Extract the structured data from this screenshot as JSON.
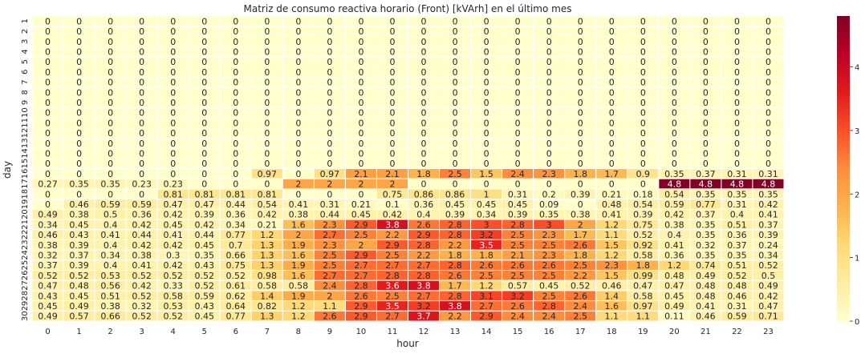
{
  "chart_data": {
    "type": "heatmap",
    "title": "Matriz de consumo reactiva horario (Front) [kVArh] en el último mes",
    "xlabel": "hour",
    "ylabel": "day",
    "x": [
      "0",
      "1",
      "2",
      "3",
      "4",
      "5",
      "6",
      "7",
      "8",
      "9",
      "10",
      "11",
      "12",
      "13",
      "14",
      "15",
      "16",
      "17",
      "18",
      "19",
      "20",
      "21",
      "22",
      "23"
    ],
    "y_ticks": [
      "1",
      "2",
      "3",
      "4",
      "5",
      "6",
      "7",
      "8",
      "9",
      "10",
      "11",
      "12",
      "13",
      "14",
      "15",
      "16",
      "17",
      "18",
      "19",
      "20",
      "21",
      "22",
      "23",
      "24",
      "25",
      "26",
      "27",
      "28",
      "29",
      "30"
    ],
    "values": [
      [
        0,
        0,
        0,
        0,
        0,
        0,
        0,
        0,
        0,
        0,
        0,
        0,
        0,
        0,
        0,
        0,
        0,
        0,
        0,
        0,
        0,
        0,
        0,
        0
      ],
      [
        0,
        0,
        0,
        0,
        0,
        0,
        0,
        0,
        0,
        0,
        0,
        0,
        0,
        0,
        0,
        0,
        0,
        0,
        0,
        0,
        0,
        0,
        0,
        0
      ],
      [
        0,
        0,
        0,
        0,
        0,
        0,
        0,
        0,
        0,
        0,
        0,
        0,
        0,
        0,
        0,
        0,
        0,
        0,
        0,
        0,
        0,
        0,
        0,
        0
      ],
      [
        0,
        0,
        0,
        0,
        0,
        0,
        0,
        0,
        0,
        0,
        0,
        0,
        0,
        0,
        0,
        0,
        0,
        0,
        0,
        0,
        0,
        0,
        0,
        0
      ],
      [
        0,
        0,
        0,
        0,
        0,
        0,
        0,
        0,
        0,
        0,
        0,
        0,
        0,
        0,
        0,
        0,
        0,
        0,
        0,
        0,
        0,
        0,
        0,
        0
      ],
      [
        0,
        0,
        0,
        0,
        0,
        0,
        0,
        0,
        0,
        0,
        0,
        0,
        0,
        0,
        0,
        0,
        0,
        0,
        0,
        0,
        0,
        0,
        0,
        0
      ],
      [
        0,
        0,
        0,
        0,
        0,
        0,
        0,
        0,
        0,
        0,
        0,
        0,
        0,
        0,
        0,
        0,
        0,
        0,
        0,
        0,
        0,
        0,
        0,
        0
      ],
      [
        0,
        0,
        0,
        0,
        0,
        0,
        0,
        0,
        0,
        0,
        0,
        0,
        0,
        0,
        0,
        0,
        0,
        0,
        0,
        0,
        0,
        0,
        0,
        0
      ],
      [
        0,
        0,
        0,
        0,
        0,
        0,
        0,
        0,
        0,
        0,
        0,
        0,
        0,
        0,
        0,
        0,
        0,
        0,
        0,
        0,
        0,
        0,
        0,
        0
      ],
      [
        0,
        0,
        0,
        0,
        0,
        0,
        0,
        0,
        0,
        0,
        0,
        0,
        0,
        0,
        0,
        0,
        0,
        0,
        0,
        0,
        0,
        0,
        0,
        0
      ],
      [
        0,
        0,
        0,
        0,
        0,
        0,
        0,
        0,
        0,
        0,
        0,
        0,
        0,
        0,
        0,
        0,
        0,
        0,
        0,
        0,
        0,
        0,
        0,
        0
      ],
      [
        0,
        0,
        0,
        0,
        0,
        0,
        0,
        0,
        0,
        0,
        0,
        0,
        0,
        0,
        0,
        0,
        0,
        0,
        0,
        0,
        0,
        0,
        0,
        0
      ],
      [
        0,
        0,
        0,
        0,
        0,
        0,
        0,
        0,
        0,
        0,
        0,
        0,
        0,
        0,
        0,
        0,
        0,
        0,
        0,
        0,
        0,
        0,
        0,
        0
      ],
      [
        0,
        0,
        0,
        0,
        0,
        0,
        0,
        0,
        0,
        0,
        0,
        0,
        0,
        0,
        0,
        0,
        0,
        0,
        0,
        0,
        0,
        0,
        0,
        0
      ],
      [
        0,
        0,
        0,
        0,
        0,
        0,
        0,
        0,
        0,
        0,
        0,
        0,
        0,
        0,
        0,
        0,
        0,
        0,
        0,
        0,
        0,
        0,
        0,
        0
      ],
      [
        0,
        0,
        0,
        0,
        0,
        0,
        0,
        0.97,
        0,
        0.97,
        2.1,
        2.1,
        1.8,
        2.5,
        1.5,
        2.4,
        2.3,
        1.8,
        1.7,
        0.9,
        0.35,
        0.37,
        0.31,
        0.31
      ],
      [
        0.27,
        0.35,
        0.35,
        0.23,
        0.23,
        0,
        0,
        0,
        2,
        2,
        2,
        2,
        0,
        0,
        0,
        0,
        0,
        0,
        0,
        0,
        4.8,
        4.8,
        4.8,
        4.8
      ],
      [
        0,
        0,
        0,
        0,
        0.81,
        0.81,
        0.81,
        0.81,
        0,
        0,
        0,
        0.75,
        0.86,
        0.86,
        1,
        0.31,
        0.2,
        0.39,
        0.21,
        0.18,
        0.54,
        0.35,
        0.35,
        0.35
      ],
      [
        0,
        0.46,
        0.59,
        0.59,
        0.47,
        0.47,
        0.44,
        0.54,
        0.41,
        0.31,
        0.21,
        0.1,
        0.36,
        0.45,
        0.45,
        0.45,
        0.09,
        0,
        0.48,
        0.54,
        0.59,
        0.77,
        0.31,
        0.42
      ],
      [
        0.49,
        0.38,
        0.5,
        0.36,
        0.42,
        0.39,
        0.36,
        0.42,
        0.38,
        0.44,
        0.45,
        0.42,
        0.4,
        0.39,
        0.34,
        0.39,
        0.35,
        0.38,
        0.41,
        0.39,
        0.42,
        0.37,
        0.4,
        0.41
      ],
      [
        0.34,
        0.45,
        0.4,
        0.42,
        0.45,
        0.42,
        0.34,
        0.21,
        1.6,
        2.3,
        2.9,
        3.8,
        2.6,
        2.8,
        3,
        2.8,
        3,
        2,
        1.2,
        0.75,
        0.38,
        0.35,
        0.51,
        0.37
      ],
      [
        0.46,
        0.43,
        0.41,
        0.44,
        0.41,
        0.44,
        0.77,
        1.2,
        2,
        2.7,
        2.5,
        2.2,
        2.9,
        2.8,
        3.2,
        2.5,
        2.3,
        1.7,
        1.1,
        0.52,
        0.4,
        0.35,
        0.36,
        0.39
      ],
      [
        0.38,
        0.39,
        0.4,
        0.42,
        0.42,
        0.45,
        0.7,
        1.3,
        1.9,
        2.3,
        2,
        2.9,
        2.8,
        2.2,
        3.5,
        2.5,
        2.5,
        2.6,
        1.5,
        0.92,
        0.41,
        0.32,
        0.37,
        0.24
      ],
      [
        0.32,
        0.37,
        0.34,
        0.38,
        0.3,
        0.35,
        0.66,
        1.3,
        1.6,
        2.5,
        2.9,
        2.5,
        2.2,
        1.8,
        1.8,
        2.1,
        2.3,
        1.8,
        1.2,
        0.58,
        0.36,
        0.35,
        0.35,
        0.34
      ],
      [
        0.37,
        0.39,
        0.4,
        0.41,
        0.42,
        0.43,
        0.75,
        1.3,
        1.9,
        2.5,
        2.7,
        2.7,
        2.7,
        2.8,
        2.6,
        2.6,
        2.6,
        2.5,
        2.3,
        1.8,
        1.2,
        0.74,
        0.51,
        0.52
      ],
      [
        0.52,
        0.52,
        0.53,
        0.52,
        0.52,
        0.52,
        0.52,
        0.98,
        1.6,
        2.7,
        2.7,
        2.8,
        2.8,
        2.6,
        2.5,
        2.5,
        2.5,
        2.2,
        1.5,
        0.99,
        0.48,
        0.49,
        0.52,
        0.5
      ],
      [
        0.47,
        0.48,
        0.56,
        0.42,
        0.33,
        0.52,
        0.61,
        0.58,
        0.58,
        2.4,
        2.8,
        3.6,
        3.8,
        1.7,
        1.2,
        0.57,
        0.45,
        0.52,
        0.46,
        0.47,
        0.47,
        0.48,
        0.48,
        0.49
      ],
      [
        0.43,
        0.45,
        0.51,
        0.52,
        0.58,
        0.59,
        0.62,
        1.4,
        1.9,
        2,
        2.6,
        2.5,
        2.7,
        2.8,
        3.1,
        3.2,
        2.5,
        2.6,
        1.4,
        0.58,
        0.45,
        0.48,
        0.46,
        0.42
      ],
      [
        0.45,
        0.49,
        0.38,
        0.32,
        0.53,
        0.43,
        0.64,
        0.82,
        1.2,
        1.1,
        2.9,
        3.5,
        3.2,
        3.8,
        2.7,
        2.6,
        2.8,
        2.4,
        1.6,
        0.97,
        0.49,
        0.41,
        0.31,
        0.47
      ],
      [
        0.49,
        0.57,
        0.66,
        0.52,
        0.52,
        0.45,
        0.77,
        1.3,
        1.2,
        2.6,
        2.9,
        2.7,
        3.7,
        2.2,
        2.9,
        2.4,
        2.4,
        2.5,
        1.1,
        1.1,
        0.11,
        0.46,
        0.59,
        0.71
      ]
    ],
    "colormap": "YlOrRd",
    "vmin": 0,
    "vmax": 4.8,
    "colorbar_ticks": [
      0,
      1,
      2,
      3,
      4
    ],
    "grid": false
  }
}
